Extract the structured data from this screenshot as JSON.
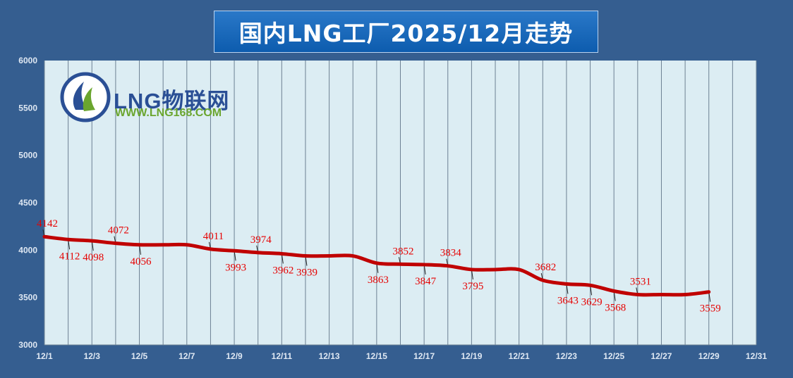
{
  "title": "国内LNG工厂2025/12月走势",
  "logo": {
    "name": "LNG物联网",
    "url": "WWW.LNG168.COM"
  },
  "colors": {
    "background": "#355e90",
    "plot": "#dcedf3",
    "line": "#c00000",
    "label": "#e60000"
  },
  "chart_data": {
    "type": "line",
    "title": "国内LNG工厂2025/12月走势",
    "xlabel": "",
    "ylabel": "",
    "ylim": [
      3000,
      6000
    ],
    "yticks": [
      3000,
      3500,
      4000,
      4500,
      5000,
      5500,
      6000
    ],
    "xlim": [
      1,
      31
    ],
    "xticks": [
      1,
      3,
      5,
      7,
      9,
      11,
      13,
      15,
      17,
      19,
      21,
      23,
      25,
      27,
      29,
      31
    ],
    "xtick_labels": [
      "12/1",
      "12/3",
      "12/5",
      "12/7",
      "12/9",
      "12/11",
      "12/13",
      "12/15",
      "12/17",
      "12/19",
      "12/21",
      "12/23",
      "12/25",
      "12/27",
      "12/29",
      "12/31"
    ],
    "grid": "vertical",
    "legend": "none",
    "series": [
      {
        "x": [
          1,
          2,
          3,
          4,
          5,
          6,
          7,
          8,
          9,
          10,
          11,
          12,
          13,
          14,
          15,
          16,
          17,
          18,
          19,
          20,
          21,
          22,
          23,
          24,
          25,
          26,
          27,
          28,
          29
        ],
        "values": [
          4142,
          4112,
          4098,
          4072,
          4056,
          4056,
          4056,
          4011,
          3993,
          3974,
          3962,
          3939,
          3939,
          3939,
          3863,
          3852,
          3847,
          3834,
          3795,
          3795,
          3795,
          3682,
          3643,
          3629,
          3568,
          3531,
          3531,
          3531,
          3559
        ]
      }
    ],
    "labels": [
      {
        "day": 1,
        "text": "4142",
        "pos": "above"
      },
      {
        "day": 2,
        "text": "4112",
        "pos": "below"
      },
      {
        "day": 3,
        "text": "4098",
        "pos": "below"
      },
      {
        "day": 4,
        "text": "4072",
        "pos": "above"
      },
      {
        "day": 5,
        "text": "4056",
        "pos": "below"
      },
      {
        "day": 8,
        "text": "4011",
        "pos": "above"
      },
      {
        "day": 9,
        "text": "3993",
        "pos": "below"
      },
      {
        "day": 10,
        "text": "3974",
        "pos": "above"
      },
      {
        "day": 11,
        "text": "3962",
        "pos": "below"
      },
      {
        "day": 12,
        "text": "3939",
        "pos": "below"
      },
      {
        "day": 15,
        "text": "3863",
        "pos": "below"
      },
      {
        "day": 16,
        "text": "3852",
        "pos": "above"
      },
      {
        "day": 17,
        "text": "3847",
        "pos": "below"
      },
      {
        "day": 18,
        "text": "3834",
        "pos": "above"
      },
      {
        "day": 19,
        "text": "3795",
        "pos": "below"
      },
      {
        "day": 22,
        "text": "3682",
        "pos": "above"
      },
      {
        "day": 23,
        "text": "3643",
        "pos": "below"
      },
      {
        "day": 24,
        "text": "3629",
        "pos": "below"
      },
      {
        "day": 25,
        "text": "3568",
        "pos": "below"
      },
      {
        "day": 26,
        "text": "3531",
        "pos": "above"
      },
      {
        "day": 29,
        "text": "3559",
        "pos": "below"
      }
    ]
  }
}
